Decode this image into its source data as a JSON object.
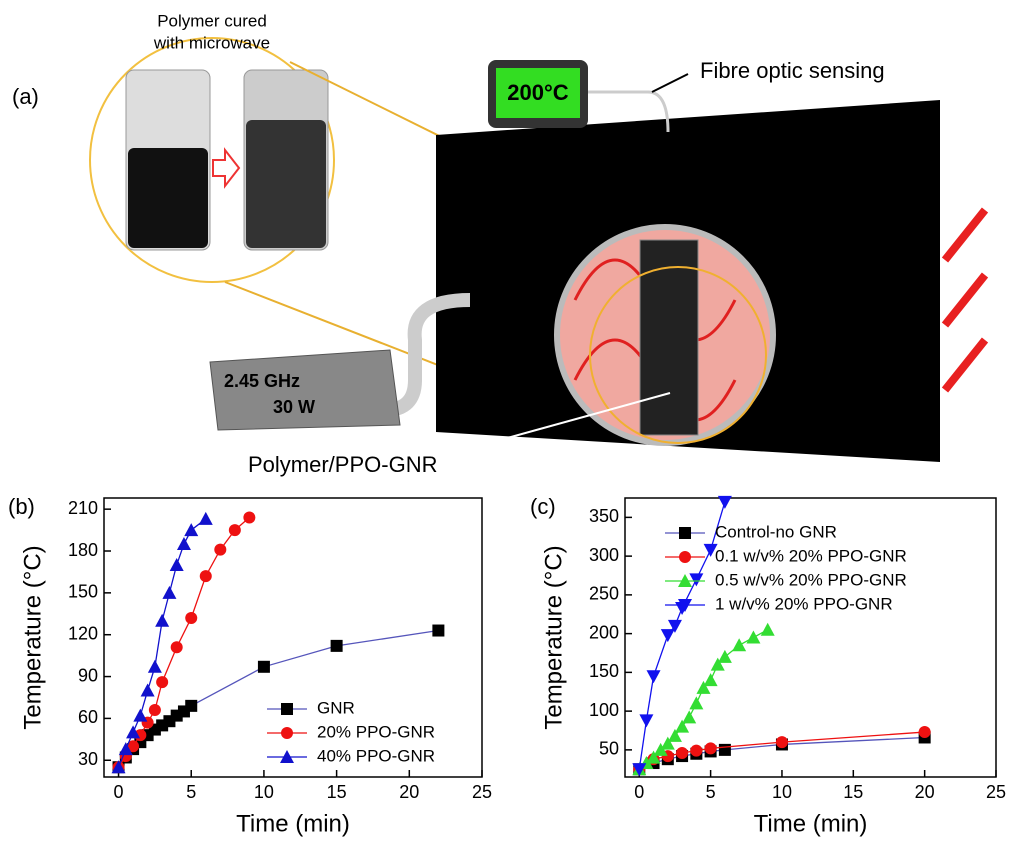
{
  "diagram": {
    "panel_label": "(a)",
    "inset_caption_1": "Polymer cured",
    "inset_caption_2": "with microwave",
    "display": "200°C",
    "sensor_label": "Fibre optic sensing",
    "source_line_1": "2.45 GHz",
    "source_line_2": "30 W",
    "sample_label": "Polymer/PPO-GNR"
  },
  "chart_data": [
    {
      "type": "line",
      "panel_label": "(b)",
      "x_label": "Time (min)",
      "y_label": "Temperature (°C)",
      "xlim": [
        -1,
        25
      ],
      "ylim": [
        18,
        218
      ],
      "xticks": [
        0,
        5,
        10,
        15,
        20,
        25
      ],
      "yticks": [
        30,
        60,
        90,
        120,
        150,
        180,
        210
      ],
      "legend": "lower right",
      "series": [
        {
          "name": "GNR",
          "color": "#000000",
          "marker": "square",
          "x": [
            0,
            0.5,
            1,
            1.5,
            2,
            2.5,
            3,
            3.5,
            4,
            4.5,
            5,
            10,
            15,
            22
          ],
          "values": [
            25,
            32,
            38,
            43,
            48,
            52,
            55,
            58,
            62,
            65,
            69,
            97,
            112,
            123
          ]
        },
        {
          "name": "20% PPO-GNR",
          "color": "#ee1111",
          "marker": "circle",
          "x": [
            0,
            0.5,
            1,
            1.5,
            2,
            2.5,
            3,
            4,
            5,
            6,
            7,
            8,
            9
          ],
          "values": [
            25,
            33,
            40,
            48,
            57,
            66,
            86,
            111,
            132,
            162,
            181,
            195,
            204
          ]
        },
        {
          "name": "40% PPO-GNR",
          "color": "#1111cc",
          "marker": "triangle",
          "x": [
            0,
            0.5,
            1,
            1.5,
            2,
            2.5,
            3,
            3.5,
            4,
            4.5,
            5,
            6
          ],
          "values": [
            25,
            38,
            50,
            62,
            80,
            97,
            130,
            150,
            170,
            185,
            195,
            203
          ]
        }
      ]
    },
    {
      "type": "line",
      "panel_label": "(c)",
      "x_label": "Time (min)",
      "y_label": "Temperature (°C)",
      "xlim": [
        -1,
        25
      ],
      "ylim": [
        15,
        375
      ],
      "xticks": [
        0,
        5,
        10,
        15,
        20,
        25
      ],
      "yticks": [
        50,
        100,
        150,
        200,
        250,
        300,
        350
      ],
      "legend": "upper left",
      "series": [
        {
          "name": "Control-no GNR",
          "color": "#000000",
          "marker": "square",
          "x": [
            0,
            1,
            2,
            3,
            4,
            5,
            6,
            10,
            20
          ],
          "values": [
            25,
            33,
            38,
            42,
            45,
            48,
            50,
            57,
            66
          ]
        },
        {
          "name": "0.1 w/v% 20% PPO-GNR",
          "color": "#ee1111",
          "marker": "circle",
          "x": [
            0,
            1,
            2,
            3,
            4,
            5,
            10,
            20
          ],
          "values": [
            25,
            38,
            42,
            46,
            49,
            52,
            60,
            73
          ]
        },
        {
          "name": "0.5 w/v% 20% PPO-GNR",
          "color": "#33dd33",
          "marker": "triangle",
          "x": [
            0,
            0.5,
            1,
            1.5,
            2,
            2.5,
            3,
            3.5,
            4,
            4.5,
            5,
            5.5,
            6,
            7,
            8,
            9
          ],
          "values": [
            25,
            33,
            40,
            50,
            58,
            68,
            80,
            92,
            110,
            130,
            140,
            160,
            170,
            185,
            195,
            205
          ]
        },
        {
          "name": "1 w/v% 20% PPO-GNR",
          "color": "#1111ee",
          "marker": "triangle-down",
          "x": [
            0,
            0.5,
            1,
            2,
            2.5,
            3,
            4,
            5,
            6
          ],
          "values": [
            25,
            88,
            145,
            198,
            210,
            233,
            270,
            308,
            370
          ]
        }
      ]
    }
  ]
}
